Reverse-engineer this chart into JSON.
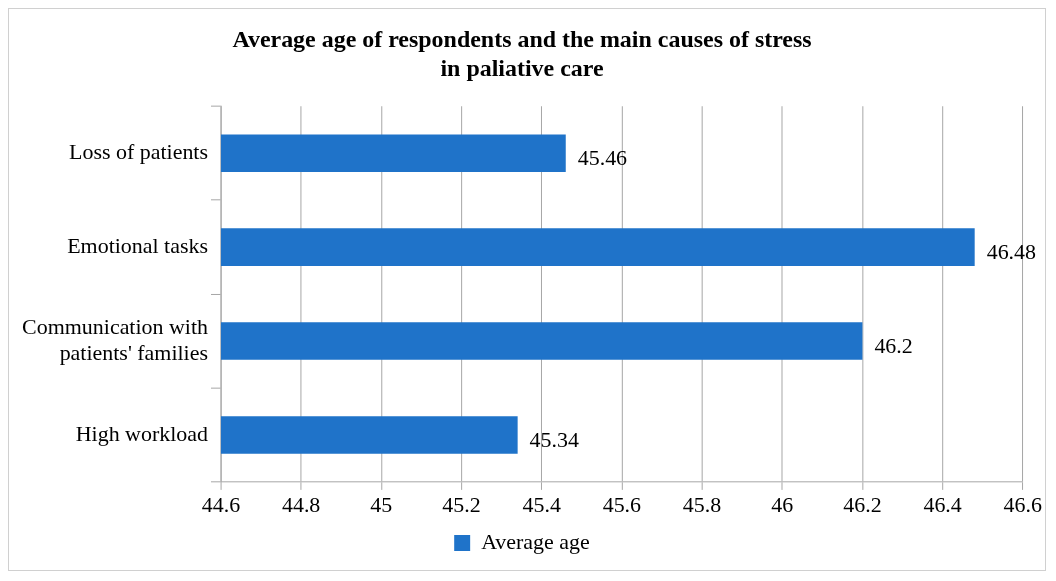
{
  "chart_data": {
    "type": "bar",
    "orientation": "horizontal",
    "title": "Average age of respondents and the main causes of stress\nin paliative care",
    "categories": [
      "Loss of patients",
      "Emotional tasks",
      "Communication with patients' families",
      "High workload"
    ],
    "series": [
      {
        "name": "Average age",
        "color": "#1f73c9",
        "values": [
          45.46,
          46.48,
          46.2,
          45.34
        ]
      }
    ],
    "xlim": [
      44.6,
      46.6
    ],
    "xticks": [
      44.6,
      44.8,
      45,
      45.2,
      45.4,
      45.6,
      45.8,
      46,
      46.2,
      46.4,
      46.6
    ],
    "grid": "x",
    "legend": "bottom",
    "data_labels": true
  }
}
